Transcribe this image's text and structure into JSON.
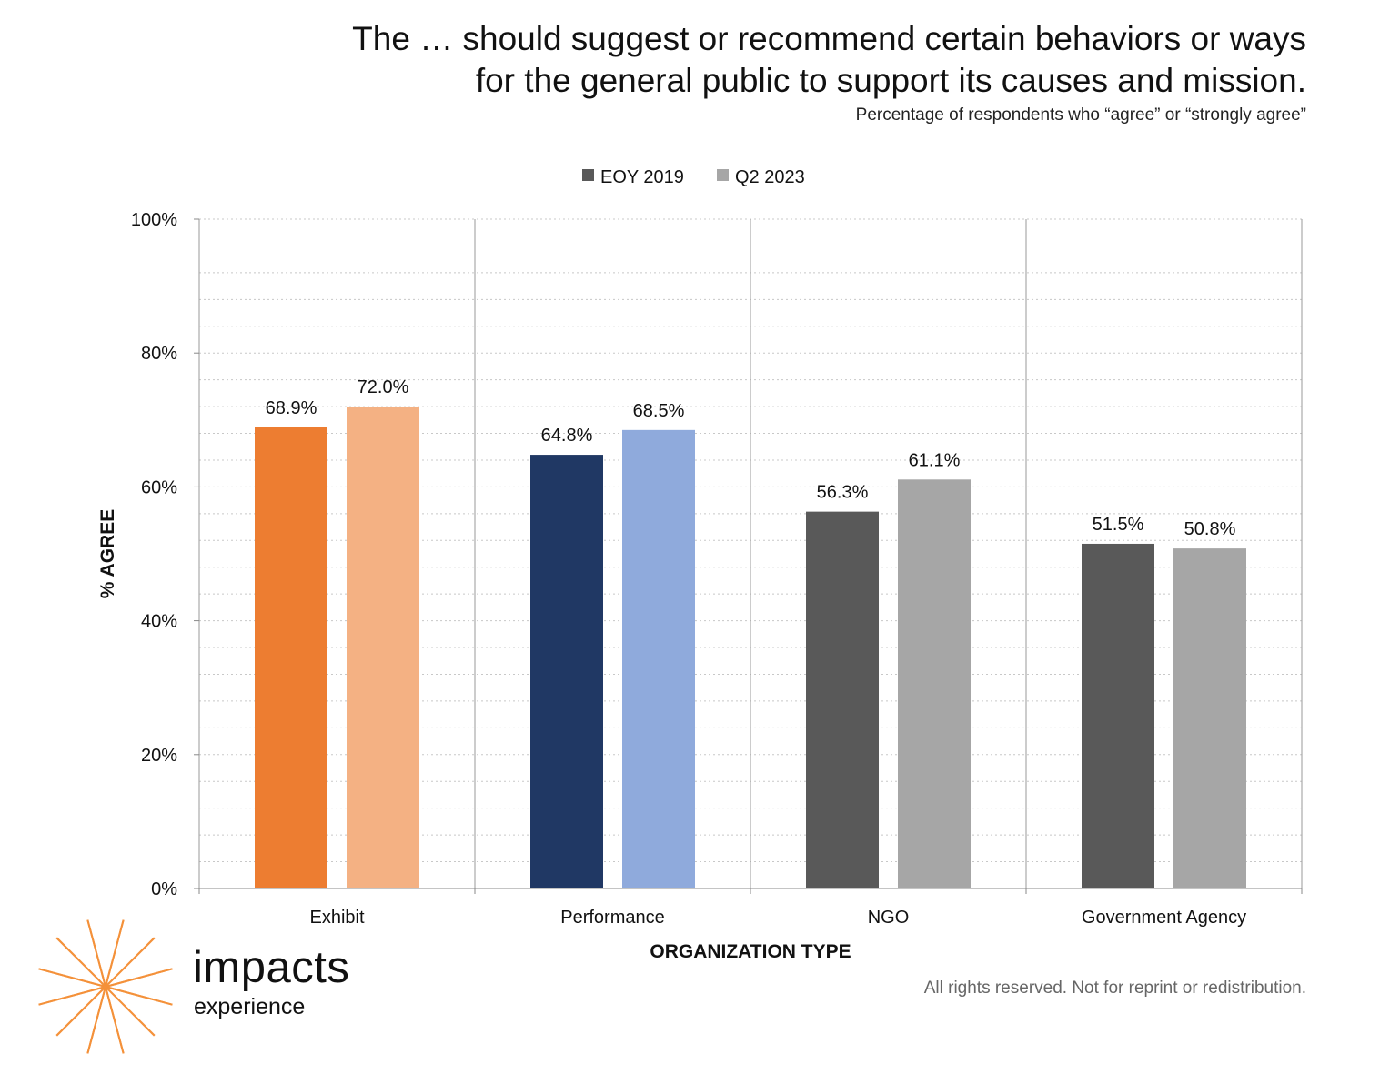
{
  "title_line1": "The … should suggest or recommend certain behaviors or ways",
  "title_line2": "for the general public to support its causes and mission.",
  "subtitle": "Percentage of respondents who “agree” or “strongly agree”",
  "legend": [
    {
      "label": "EOY 2019",
      "color": "#595959"
    },
    {
      "label": "Q2 2023",
      "color": "#a6a6a6"
    }
  ],
  "chart_data": {
    "type": "bar",
    "title": "The … should suggest or recommend certain behaviors or ways for the general public to support its causes and mission.",
    "subtitle": "Percentage of respondents who “agree” or “strongly agree”",
    "xlabel": "ORGANIZATION TYPE",
    "ylabel": "% AGREE",
    "ylim": [
      0,
      100
    ],
    "yticks": [
      "0%",
      "20%",
      "40%",
      "60%",
      "80%",
      "100%"
    ],
    "categories": [
      "Exhibit",
      "Performance",
      "NGO",
      "Government Agency"
    ],
    "series": [
      {
        "name": "EOY 2019",
        "values": [
          68.9,
          64.8,
          56.3,
          51.5
        ],
        "labels": [
          "68.9%",
          "64.8%",
          "56.3%",
          "51.5%"
        ],
        "colors": [
          "#ed7d31",
          "#203864",
          "#595959",
          "#595959"
        ]
      },
      {
        "name": "Q2 2023",
        "values": [
          72.0,
          68.5,
          61.1,
          50.8
        ],
        "labels": [
          "72.0%",
          "68.5%",
          "61.1%",
          "50.8%"
        ],
        "colors": [
          "#f4b183",
          "#8faadc",
          "#a6a6a6",
          "#a6a6a6"
        ]
      }
    ],
    "grid": true,
    "legend_position": "top-center"
  },
  "logo": {
    "word": "impacts",
    "sub": "experience",
    "color": "#f4913a"
  },
  "footer": "All rights reserved. Not for reprint or redistribution."
}
